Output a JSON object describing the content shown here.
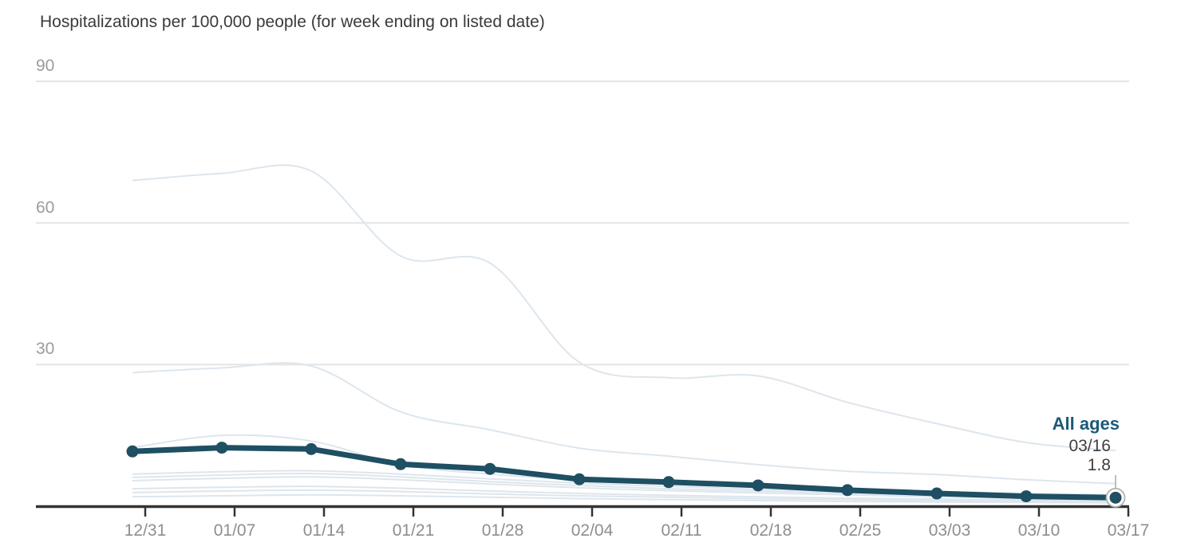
{
  "title": "Hospitalizations per 100,000 people (for week ending on listed date)",
  "colors": {
    "accent_line": "#1e4f63",
    "accent_text": "#1b5a77",
    "background_line": "#dde6ed",
    "gridline": "#e4e4e4",
    "axis": "#333333",
    "x_tick_label": "#8e8e8e",
    "y_tick_label": "#9b9b9b",
    "title_text": "#3a3a3a",
    "endpoint_ring": "#b0b0b0",
    "annotation_connector": "#bdbdbd"
  },
  "chart_data": {
    "type": "line",
    "title": "Hospitalizations per 100,000 people (for week ending on listed date)",
    "x_axis": {
      "tick_labels": [
        "12/31",
        "01/07",
        "01/14",
        "01/21",
        "01/28",
        "02/04",
        "02/11",
        "02/18",
        "02/25",
        "03/03",
        "03/10",
        "03/17"
      ]
    },
    "y_axis": {
      "tick_labels": [
        "90",
        "60",
        "30"
      ],
      "gridline_values": [
        90,
        60,
        30
      ],
      "range": [
        0,
        95
      ],
      "grid": true
    },
    "legend_position": "annotation-right",
    "series": [
      {
        "name": "All ages",
        "emphasis": true,
        "show_points": true,
        "values": [
          11.6,
          12.4,
          12.1,
          8.9,
          7.9,
          5.7,
          5.1,
          4.4,
          3.4,
          2.7,
          2.1,
          1.8
        ]
      },
      {
        "name": null,
        "emphasis": false,
        "show_points": false,
        "values": [
          69,
          70.5,
          71,
          53,
          51.5,
          30.5,
          27.2,
          27.6,
          22.0,
          17.5,
          13.5,
          11.8
        ]
      },
      {
        "name": null,
        "emphasis": false,
        "show_points": false,
        "values": [
          28.3,
          29.3,
          29.7,
          20.0,
          16.2,
          12.3,
          10.6,
          8.8,
          7.4,
          6.7,
          5.6,
          4.8
        ]
      },
      {
        "name": null,
        "emphasis": false,
        "show_points": false,
        "values": [
          12.4,
          15.0,
          13.8,
          8.8,
          6.8,
          5.6,
          4.8,
          4.2,
          3.6,
          3.1,
          2.7,
          2.4
        ]
      },
      {
        "name": null,
        "emphasis": false,
        "show_points": false,
        "values": [
          6.8,
          7.3,
          7.5,
          6.8,
          5.8,
          4.9,
          4.2,
          3.6,
          3.1,
          2.7,
          2.4,
          2.2
        ]
      },
      {
        "name": null,
        "emphasis": false,
        "show_points": false,
        "values": [
          6.1,
          6.6,
          6.9,
          6.2,
          5.2,
          4.4,
          3.7,
          3.2,
          2.7,
          2.3,
          2.0,
          1.8
        ]
      },
      {
        "name": null,
        "emphasis": false,
        "show_points": false,
        "values": [
          5.4,
          5.9,
          6.2,
          5.6,
          4.7,
          3.9,
          3.3,
          2.8,
          2.4,
          2.0,
          1.7,
          1.5
        ]
      },
      {
        "name": null,
        "emphasis": false,
        "show_points": false,
        "values": [
          3.7,
          4.0,
          4.2,
          3.8,
          3.2,
          2.7,
          2.3,
          2.0,
          1.7,
          1.5,
          1.3,
          1.2
        ]
      },
      {
        "name": null,
        "emphasis": false,
        "show_points": false,
        "values": [
          2.9,
          3.2,
          3.4,
          3.1,
          2.6,
          2.2,
          1.9,
          1.6,
          1.4,
          1.2,
          1.1,
          1.0
        ]
      },
      {
        "name": null,
        "emphasis": false,
        "show_points": false,
        "values": [
          2.0,
          2.2,
          2.4,
          2.2,
          1.9,
          1.6,
          1.4,
          1.2,
          1.0,
          0.9,
          0.8,
          0.7
        ]
      }
    ],
    "annotation": {
      "series_label": "All ages",
      "date": "03/16",
      "value": "1.8"
    }
  }
}
